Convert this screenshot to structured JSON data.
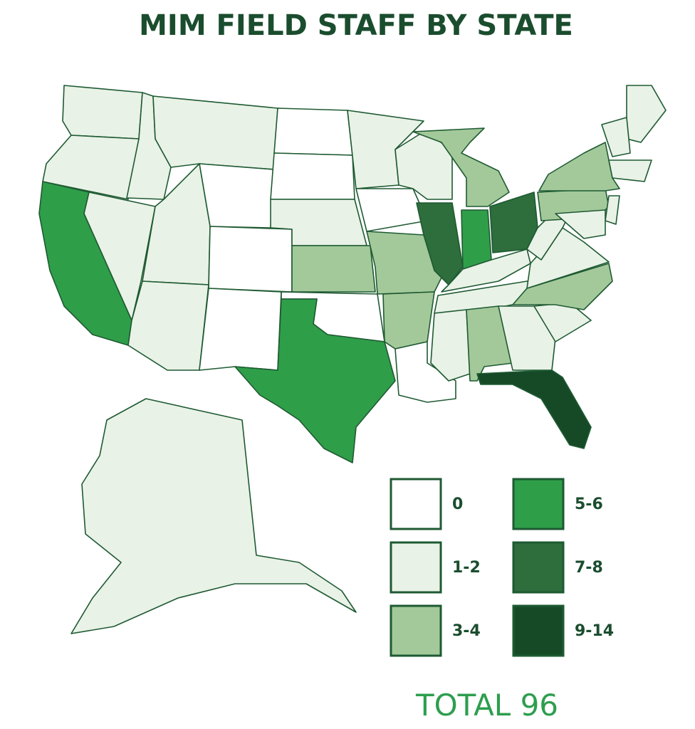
{
  "title": "MIM FIELD STAFF BY STATE",
  "legend": {
    "items": [
      {
        "label": "0",
        "color": "#ffffff"
      },
      {
        "label": "1-2",
        "color": "#e9f2e7"
      },
      {
        "label": "3-4",
        "color": "#a3c99a"
      },
      {
        "label": "5-6",
        "color": "#2f9e49"
      },
      {
        "label": "7-8",
        "color": "#2e6d3c"
      },
      {
        "label": "9-14",
        "color": "#164a27"
      }
    ]
  },
  "total": {
    "label": "TOTAL",
    "value": 96
  }
}
